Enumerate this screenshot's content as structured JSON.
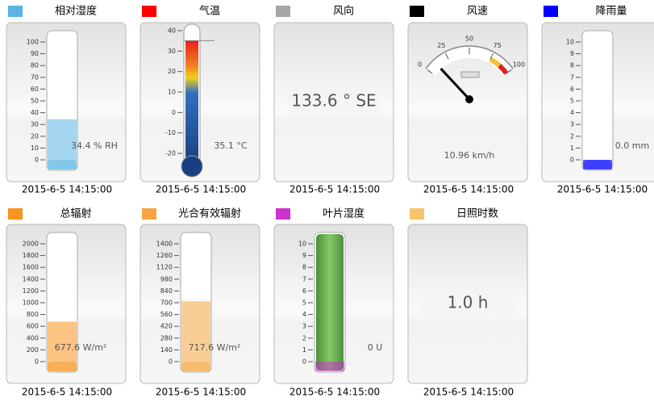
{
  "widgets": [
    {
      "title": "相对湿度",
      "color": "#5ab4e5",
      "kind": "tube",
      "range": [
        0,
        100
      ],
      "ticks": [
        0,
        10,
        20,
        30,
        40,
        50,
        60,
        70,
        80,
        90,
        100
      ],
      "value": 34.4,
      "reading": "34.4 % RH",
      "time": "2015-6-5 14:15:00"
    },
    {
      "title": "气温",
      "color": "#ff0000",
      "kind": "thermo",
      "range": [
        -20,
        40
      ],
      "ticks": [
        40,
        30,
        20,
        10,
        0,
        -10,
        -20
      ],
      "value": 35.1,
      "reading": "35.1 °C",
      "time": "2015-6-5 14:15:00"
    },
    {
      "title": "风向",
      "color": "#a6a6a6",
      "kind": "text",
      "reading": "133.6 ° SE",
      "time": "2015-6-5 14:15:00"
    },
    {
      "title": "风速",
      "color": "#000000",
      "kind": "dial",
      "range": [
        0,
        100
      ],
      "ticks": [
        0,
        25,
        50,
        75,
        100
      ],
      "value": 10.96,
      "reading": "10.96 km/h",
      "time": "2015-6-5 14:15:00"
    },
    {
      "title": "降雨量",
      "color": "#0000ff",
      "kind": "tube",
      "range": [
        0,
        10
      ],
      "ticks": [
        0,
        1,
        2,
        3,
        4,
        5,
        6,
        7,
        8,
        9,
        10
      ],
      "value": 0.0,
      "reading": "0.0 mm",
      "time": "2015-6-5 14:15:00"
    },
    {
      "title": "总辐射",
      "color": "#f7941d",
      "kind": "tube",
      "range": [
        0,
        2000
      ],
      "ticks": [
        0,
        200,
        400,
        600,
        800,
        1000,
        1200,
        1400,
        1600,
        1800,
        2000
      ],
      "value": 677.6,
      "reading": "677.6 W/m²",
      "time": "2015-6-5 14:15:00"
    },
    {
      "title": "光合有效辐射",
      "color": "#f4a640",
      "kind": "tube",
      "range": [
        0,
        1400
      ],
      "ticks": [
        0,
        140,
        280,
        420,
        560,
        700,
        840,
        980,
        1120,
        1260,
        1400
      ],
      "value": 717.6,
      "reading": "717.6 W/m²",
      "time": "2015-6-5 14:15:00"
    },
    {
      "title": "叶片湿度",
      "color": "#cc33cc",
      "kind": "leaf",
      "range": [
        0,
        10
      ],
      "ticks": [
        0,
        1,
        2,
        3,
        4,
        5,
        6,
        7,
        8,
        9,
        10
      ],
      "value": 0,
      "reading": "0 U",
      "time": "2015-6-5 14:15:00"
    },
    {
      "title": "日照时数",
      "color": "#f7c46c",
      "kind": "text",
      "reading": "1.0 h",
      "time": "2015-6-5 14:15:00"
    }
  ]
}
